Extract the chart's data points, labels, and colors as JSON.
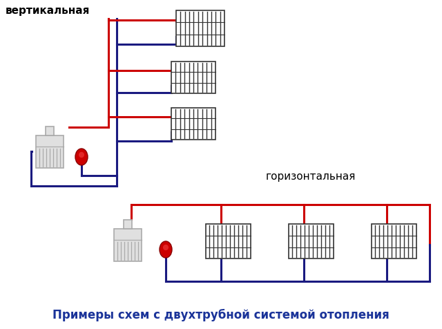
{
  "title": "Примеры схем с двухтрубной системой отопления",
  "label_vertical": "вертикальная",
  "label_horizontal": "горизонтальная",
  "bg_color": "#ffffff",
  "red_color": "#cc0000",
  "blue_color": "#1a1a80",
  "boiler_edge_color": "#aaaaaa",
  "boiler_face_color": "#e0e0e0",
  "pump_color": "#cc0000",
  "radiator_edge_color": "#333333",
  "title_color": "#1a3399",
  "title_fontsize": 12,
  "label_fontsize": 11,
  "lw": 2.2
}
